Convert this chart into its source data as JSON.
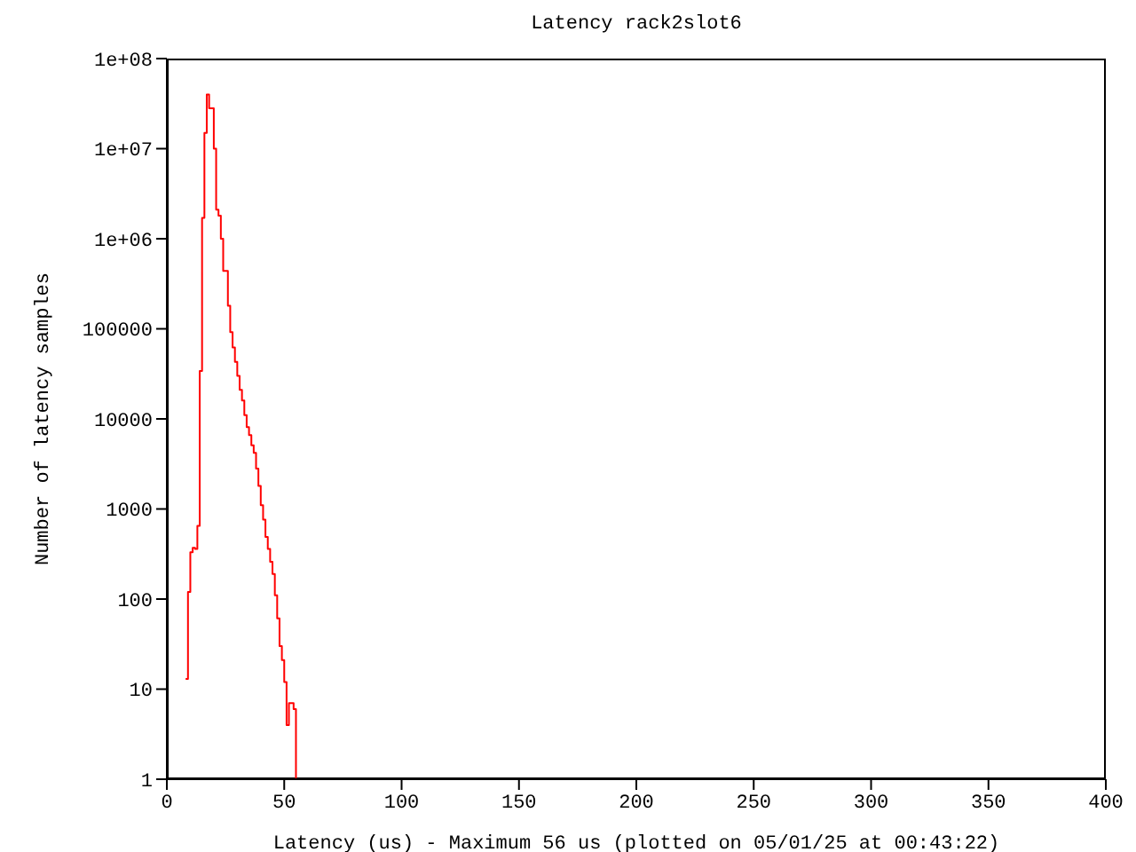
{
  "chart_data": {
    "type": "step",
    "title": "Latency rack2slot6",
    "xlabel": "Latency (us) - Maximum 56 us (plotted on 05/01/25 at 00:43:22)",
    "ylabel": "Number of latency samples",
    "x": [
      8,
      9,
      10,
      11,
      12,
      13,
      14,
      15,
      16,
      17,
      18,
      19,
      20,
      21,
      22,
      23,
      24,
      25,
      26,
      27,
      28,
      29,
      30,
      31,
      32,
      33,
      34,
      35,
      36,
      37,
      38,
      39,
      40,
      41,
      42,
      43,
      44,
      45,
      46,
      47,
      48,
      49,
      50,
      51,
      52,
      53,
      54,
      55
    ],
    "series": [
      {
        "color": "#ff0000",
        "values": [
          13,
          120,
          330,
          370,
          360,
          650,
          34000,
          1700000,
          15000000,
          40000000,
          28000000,
          28000000,
          10000000,
          2100000,
          1800000,
          1000000,
          440000,
          440000,
          180000,
          92000,
          62000,
          43000,
          30000,
          21000,
          16000,
          11000,
          8100,
          6600,
          5100,
          4200,
          2800,
          1800,
          1100,
          760,
          490,
          360,
          260,
          190,
          110,
          61,
          30,
          21,
          12,
          4,
          7,
          7,
          6,
          1
        ]
      }
    ],
    "xlim": [
      0,
      400
    ],
    "xticks": [
      0,
      50,
      100,
      150,
      200,
      250,
      300,
      350,
      400
    ],
    "ylim": [
      1,
      100000000
    ],
    "yticks": [
      1,
      10,
      100,
      1000,
      10000,
      100000,
      {
        "value": 1000000,
        "label": "1e+06"
      },
      {
        "value": 10000000,
        "label": "1e+07"
      },
      {
        "value": 100000000,
        "label": "1e+08"
      }
    ],
    "log": "y",
    "grid": false,
    "legend": false
  }
}
